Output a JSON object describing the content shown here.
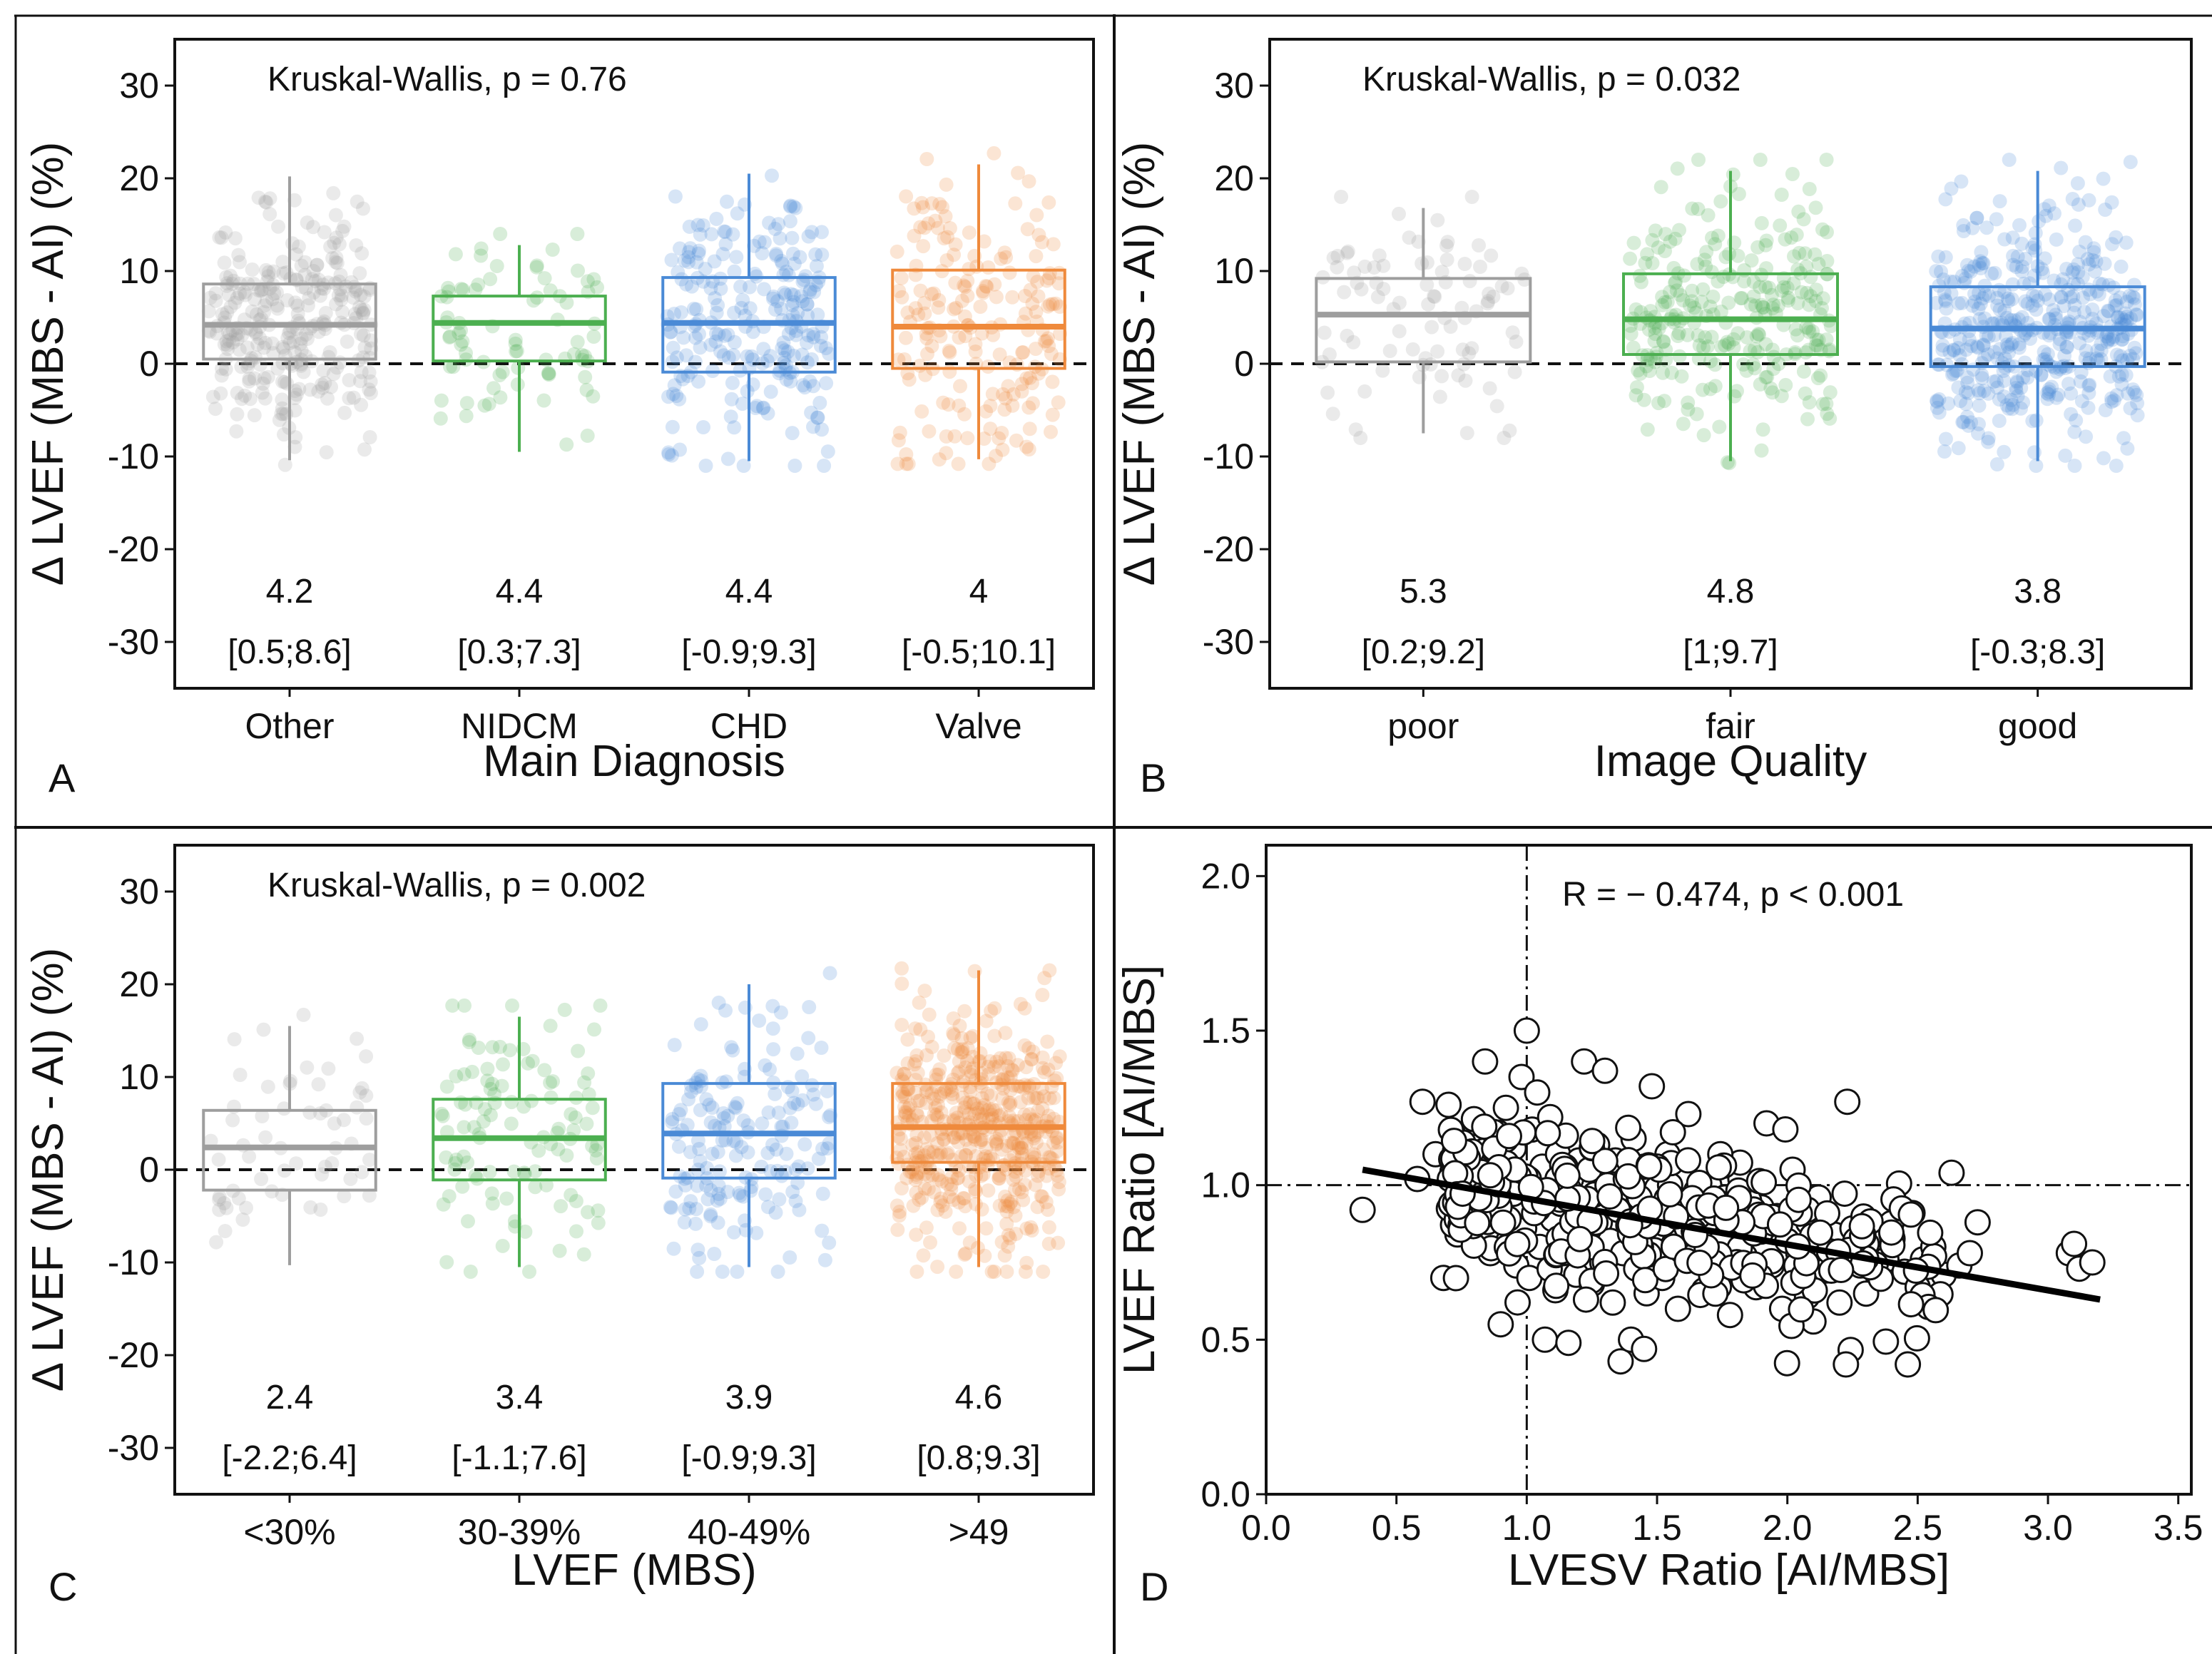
{
  "figure_name": "lvef-comparison-figure",
  "colors": {
    "gray": "#9e9e9e",
    "green": "#4caf50",
    "blue": "#4a8ad6",
    "orange": "#ef8a3c",
    "black": "#111111"
  },
  "chart_data": [
    {
      "panel": "A",
      "type": "box",
      "annotation": "Kruskal-Wallis, p = 0.76",
      "ylabel": "Δ LVEF (MBS - AI) (%)",
      "xlabel": "Main Diagnosis",
      "ylim": [
        -35,
        35
      ],
      "yticks": [
        30,
        20,
        10,
        0,
        -10,
        -20,
        -30
      ],
      "ytick_labels": [
        "30",
        "20",
        "10",
        "0",
        "-10",
        "-20",
        "-30"
      ],
      "categories": [
        "Other",
        "NIDCM",
        "CHD",
        "Valve"
      ],
      "groups": [
        {
          "name": "Other",
          "color": "gray",
          "q1": 0.5,
          "median": 4.2,
          "q3": 8.6,
          "whisker_low": -10.4,
          "whisker_high": 20.2,
          "n_points": 300,
          "median_label": "4.2",
          "iqr_label": "[0.5;8.6]"
        },
        {
          "name": "NIDCM",
          "color": "green",
          "q1": 0.3,
          "median": 4.4,
          "q3": 7.3,
          "whisker_low": -9.5,
          "whisker_high": 12.8,
          "n_points": 80,
          "median_label": "4.4",
          "iqr_label": "[0.3;7.3]"
        },
        {
          "name": "CHD",
          "color": "blue",
          "q1": -0.9,
          "median": 4.4,
          "q3": 9.3,
          "whisker_low": -10.5,
          "whisker_high": 20.5,
          "n_points": 240,
          "median_label": "4.4",
          "iqr_label": "[-0.9;9.3]"
        },
        {
          "name": "Valve",
          "color": "orange",
          "q1": -0.5,
          "median": 4.0,
          "q3": 10.1,
          "whisker_low": -10.3,
          "whisker_high": 21.5,
          "n_points": 200,
          "median_label": "4",
          "iqr_label": "[-0.5;10.1]"
        }
      ]
    },
    {
      "panel": "B",
      "type": "box",
      "annotation": "Kruskal-Wallis, p = 0.032",
      "ylabel": "Δ LVEF (MBS - AI) (%)",
      "xlabel": "Image Quality",
      "ylim": [
        -35,
        35
      ],
      "yticks": [
        30,
        20,
        10,
        0,
        -10,
        -20,
        -30
      ],
      "ytick_labels": [
        "30",
        "20",
        "10",
        "0",
        "-10",
        "-20",
        "-30"
      ],
      "categories": [
        "poor",
        "fair",
        "good"
      ],
      "groups": [
        {
          "name": "poor",
          "color": "gray",
          "q1": 0.2,
          "median": 5.3,
          "q3": 9.2,
          "whisker_low": -7.5,
          "whisker_high": 16.8,
          "n_points": 90,
          "median_label": "5.3",
          "iqr_label": "[0.2;9.2]"
        },
        {
          "name": "fair",
          "color": "green",
          "q1": 1.0,
          "median": 4.8,
          "q3": 9.7,
          "whisker_low": -10.5,
          "whisker_high": 20.8,
          "n_points": 280,
          "median_label": "4.8",
          "iqr_label": "[1;9.7]"
        },
        {
          "name": "good",
          "color": "blue",
          "q1": -0.3,
          "median": 3.8,
          "q3": 8.3,
          "whisker_low": -10.5,
          "whisker_high": 20.8,
          "n_points": 450,
          "median_label": "3.8",
          "iqr_label": "[-0.3;8.3]"
        }
      ]
    },
    {
      "panel": "C",
      "type": "box",
      "annotation": "Kruskal-Wallis, p = 0.002",
      "ylabel": "Δ LVEF (MBS - AI) (%)",
      "xlabel": "LVEF (MBS)",
      "ylim": [
        -35,
        35
      ],
      "yticks": [
        30,
        20,
        10,
        0,
        -10,
        -20,
        -30
      ],
      "ytick_labels": [
        "30",
        "20",
        "10",
        "0",
        "-10",
        "-20",
        "-30"
      ],
      "categories": [
        "<30%",
        "30-39%",
        "40-49%",
        ">49"
      ],
      "groups": [
        {
          "name": "<30%",
          "color": "gray",
          "q1": -2.2,
          "median": 2.4,
          "q3": 6.4,
          "whisker_low": -10.3,
          "whisker_high": 15.5,
          "n_points": 60,
          "median_label": "2.4",
          "iqr_label": "[-2.2;6.4]"
        },
        {
          "name": "30-39%",
          "color": "green",
          "q1": -1.1,
          "median": 3.4,
          "q3": 7.6,
          "whisker_low": -10.5,
          "whisker_high": 16.5,
          "n_points": 110,
          "median_label": "3.4",
          "iqr_label": "[-1.1;7.6]"
        },
        {
          "name": "40-49%",
          "color": "blue",
          "q1": -0.9,
          "median": 3.9,
          "q3": 9.3,
          "whisker_low": -10.5,
          "whisker_high": 20.0,
          "n_points": 170,
          "median_label": "3.9",
          "iqr_label": "[-0.9;9.3]"
        },
        {
          "name": ">49",
          "color": "orange",
          "q1": 0.8,
          "median": 4.6,
          "q3": 9.3,
          "whisker_low": -10.5,
          "whisker_high": 21.5,
          "n_points": 500,
          "median_label": "4.6",
          "iqr_label": "[0.8;9.3]"
        }
      ]
    },
    {
      "panel": "D",
      "type": "scatter",
      "annotation": "R = − 0.474, p < 0.001",
      "xlabel": "LVESV Ratio [AI/MBS]",
      "ylabel": "LVEF Ratio [AI/MBS]",
      "xlim": [
        0.0,
        3.55
      ],
      "ylim": [
        0.0,
        2.1
      ],
      "xticks": [
        0.0,
        0.5,
        1.0,
        1.5,
        2.0,
        2.5,
        3.0,
        3.5
      ],
      "xtick_labels": [
        "0.0",
        "0.5",
        "1.0",
        "1.5",
        "2.0",
        "2.5",
        "3.0",
        "3.5"
      ],
      "yticks": [
        0.0,
        0.5,
        1.0,
        1.5,
        2.0
      ],
      "ytick_labels": [
        "0.0",
        "0.5",
        "1.0",
        "1.5",
        "2.0"
      ],
      "reference_lines": {
        "x": 1.0,
        "y": 1.0
      },
      "regression": {
        "x0": 0.37,
        "y0": 1.05,
        "x1": 3.2,
        "y1": 0.63
      },
      "points": [
        [
          0.37,
          0.92
        ],
        [
          0.58,
          1.02
        ],
        [
          0.6,
          1.27
        ],
        [
          0.65,
          1.1
        ],
        [
          0.68,
          0.7
        ],
        [
          0.7,
          1.26
        ],
        [
          0.72,
          1.08
        ],
        [
          0.74,
          0.93
        ],
        [
          0.76,
          1.03
        ],
        [
          0.78,
          0.88
        ],
        [
          0.8,
          1.2
        ],
        [
          0.82,
          1.15
        ],
        [
          0.83,
          0.96
        ],
        [
          0.84,
          1.4
        ],
        [
          0.85,
          1.05
        ],
        [
          0.86,
          0.78
        ],
        [
          0.88,
          0.99
        ],
        [
          0.89,
          1.17
        ],
        [
          0.9,
          0.9
        ],
        [
          0.91,
          1.08
        ],
        [
          0.92,
          1.25
        ],
        [
          0.93,
          0.82
        ],
        [
          0.94,
          1.0
        ],
        [
          0.95,
          1.12
        ],
        [
          0.96,
          0.74
        ],
        [
          0.97,
          0.95
        ],
        [
          0.98,
          1.35
        ],
        [
          0.99,
          0.86
        ],
        [
          1.0,
          1.5
        ],
        [
          1.0,
          1.02
        ],
        [
          1.01,
          0.7
        ],
        [
          1.02,
          1.18
        ],
        [
          1.03,
          0.93
        ],
        [
          1.04,
          1.3
        ],
        [
          1.05,
          0.8
        ],
        [
          1.06,
          1.06
        ],
        [
          1.07,
          0.5
        ],
        [
          1.08,
          0.98
        ],
        [
          1.09,
          1.22
        ],
        [
          1.1,
          0.89
        ],
        [
          1.11,
          0.66
        ],
        [
          1.12,
          1.1
        ],
        [
          1.13,
          0.94
        ],
        [
          1.14,
          0.78
        ],
        [
          1.15,
          1.16
        ],
        [
          1.16,
          0.49
        ],
        [
          1.17,
          1.02
        ],
        [
          1.18,
          0.85
        ],
        [
          1.19,
          0.71
        ],
        [
          1.2,
          1.08
        ],
        [
          1.21,
          0.93
        ],
        [
          1.22,
          1.4
        ],
        [
          1.23,
          0.8
        ],
        [
          1.24,
          1.05
        ],
        [
          1.25,
          0.68
        ],
        [
          1.26,
          0.97
        ],
        [
          1.27,
          1.13
        ],
        [
          1.28,
          0.88
        ],
        [
          1.29,
          0.75
        ],
        [
          1.3,
          1.37
        ],
        [
          1.31,
          1.0
        ],
        [
          1.32,
          0.82
        ],
        [
          1.33,
          0.62
        ],
        [
          1.34,
          1.08
        ],
        [
          1.35,
          0.92
        ],
        [
          1.36,
          0.43
        ],
        [
          1.37,
          0.78
        ],
        [
          1.38,
          1.02
        ],
        [
          1.39,
          0.87
        ],
        [
          1.4,
          0.5
        ],
        [
          1.41,
          1.15
        ],
        [
          1.42,
          0.73
        ],
        [
          1.43,
          0.96
        ],
        [
          1.44,
          0.84
        ],
        [
          1.45,
          1.06
        ],
        [
          1.46,
          0.65
        ],
        [
          1.47,
          0.9
        ],
        [
          1.48,
          1.32
        ],
        [
          1.49,
          0.79
        ],
        [
          1.5,
          0.99
        ],
        [
          1.52,
          0.7
        ],
        [
          1.54,
          1.1
        ],
        [
          1.56,
          0.86
        ],
        [
          1.58,
          0.6
        ],
        [
          1.6,
          0.95
        ],
        [
          1.62,
          1.23
        ],
        [
          1.64,
          0.77
        ],
        [
          1.66,
          0.9
        ],
        [
          1.68,
          0.66
        ],
        [
          1.7,
          1.0
        ],
        [
          1.72,
          0.84
        ],
        [
          1.74,
          0.73
        ],
        [
          1.76,
          0.96
        ],
        [
          1.78,
          0.58
        ],
        [
          1.8,
          0.88
        ],
        [
          1.82,
          1.02
        ],
        [
          1.84,
          0.76
        ],
        [
          1.86,
          0.92
        ],
        [
          1.88,
          0.67
        ],
        [
          1.9,
          0.85
        ],
        [
          1.92,
          1.2
        ],
        [
          1.94,
          0.74
        ],
        [
          1.96,
          0.9
        ],
        [
          1.98,
          0.6
        ],
        [
          2.0,
          0.82
        ],
        [
          2.02,
          1.05
        ],
        [
          2.05,
          0.72
        ],
        [
          2.08,
          0.88
        ],
        [
          2.1,
          0.66
        ],
        [
          2.12,
          0.96
        ],
        [
          2.15,
          0.78
        ],
        [
          2.18,
          0.84
        ],
        [
          2.2,
          0.62
        ],
        [
          2.23,
          1.27
        ],
        [
          2.25,
          0.86
        ],
        [
          2.28,
          0.74
        ],
        [
          2.3,
          0.8
        ],
        [
          2.35,
          0.7
        ],
        [
          2.38,
          0.76
        ],
        [
          2.4,
          0.84
        ],
        [
          2.45,
          0.72
        ],
        [
          2.48,
          0.91
        ],
        [
          2.5,
          0.67
        ],
        [
          2.52,
          0.76
        ],
        [
          2.56,
          0.8
        ],
        [
          2.6,
          0.71
        ],
        [
          2.63,
          1.04
        ],
        [
          2.66,
          0.74
        ],
        [
          2.7,
          0.78
        ],
        [
          2.73,
          0.88
        ],
        [
          3.08,
          0.78
        ],
        [
          3.1,
          0.81
        ],
        [
          3.12,
          0.73
        ],
        [
          3.17,
          0.75
        ],
        [
          0.9,
          0.55
        ],
        [
          1.45,
          0.47
        ],
        [
          1.8,
          0.95
        ],
        [
          1.55,
          1.0
        ],
        [
          1.65,
          0.98
        ],
        [
          1.25,
          1.12
        ]
      ]
    }
  ]
}
